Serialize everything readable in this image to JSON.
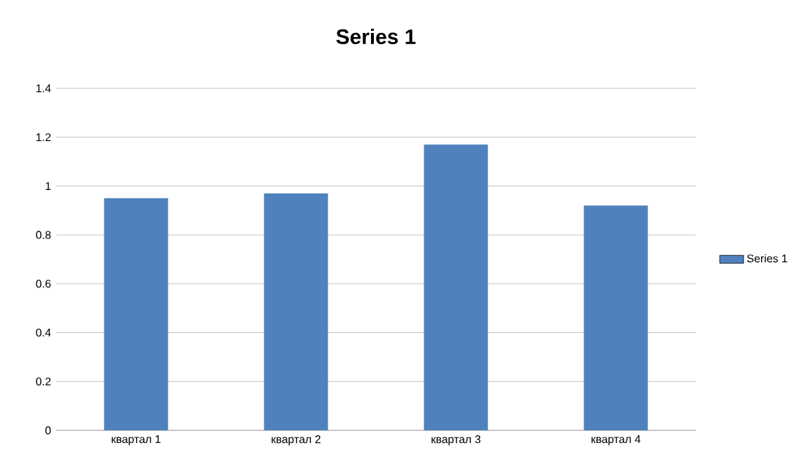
{
  "chart_data": {
    "type": "bar",
    "title": "Series 1",
    "categories": [
      "квартал 1",
      "квартал 2",
      "квартал 3",
      "квартал 4"
    ],
    "series": [
      {
        "name": "Series 1",
        "color": "#4f81bd",
        "values": [
          0.95,
          0.97,
          1.17,
          0.92
        ]
      }
    ],
    "ylim": [
      0,
      1.4
    ],
    "yticks": [
      0,
      0.2,
      0.4,
      0.6,
      0.8,
      1,
      1.2,
      1.4
    ],
    "grid": "y",
    "legend": "right"
  }
}
